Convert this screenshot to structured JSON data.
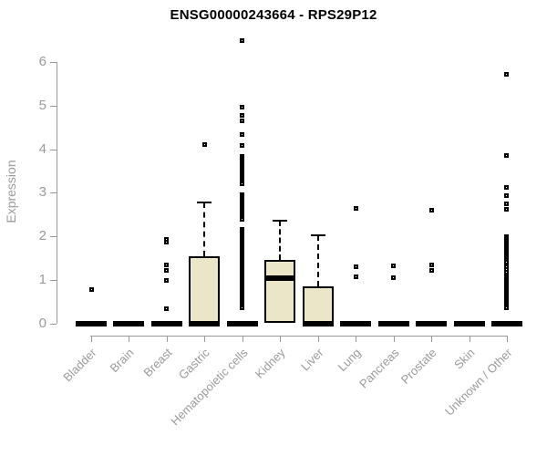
{
  "chart_data": {
    "type": "boxplot",
    "title": "ENSG00000243664 - RPS29P12",
    "xlabel": "",
    "ylabel": "Expression",
    "ylim": [
      0,
      6
    ],
    "yticks": [
      0,
      1,
      2,
      3,
      4,
      5,
      6
    ],
    "grid": false,
    "legend": "none",
    "categories": [
      "Bladder",
      "Brain",
      "Breast",
      "Gastric",
      "Hematopoietic cells",
      "Kidney",
      "Liver",
      "Lung",
      "Pancreas",
      "Prostate",
      "Skin",
      "Unknown / Other"
    ],
    "colors": {
      "box_fill": "#ebe6c8",
      "box_border": "#000000",
      "median": "#000000",
      "axis": "#999999",
      "tick_labels": "#9a9a9a",
      "title": "#000000",
      "background": "#ffffff"
    },
    "boxes": [
      {
        "category": "Bladder",
        "q1": 0,
        "median": 0,
        "q3": 0,
        "whisker_low": 0,
        "whisker_high": 0,
        "outliers": [
          0.78
        ]
      },
      {
        "category": "Brain",
        "q1": 0,
        "median": 0,
        "q3": 0,
        "whisker_low": 0,
        "whisker_high": 0,
        "outliers": []
      },
      {
        "category": "Breast",
        "q1": 0,
        "median": 0,
        "q3": 0,
        "whisker_low": 0,
        "whisker_high": 0,
        "outliers": [
          1.92,
          1.86,
          1.34,
          1.22,
          0.99,
          0.34
        ]
      },
      {
        "category": "Gastric",
        "q1": 0,
        "median": 0,
        "q3": 1.55,
        "whisker_low": 0,
        "whisker_high": 2.78,
        "outliers": [
          4.1
        ]
      },
      {
        "category": "Hematopoietic cells",
        "q1": 0,
        "median": 0,
        "q3": 0,
        "whisker_low": 0,
        "whisker_high": 0,
        "outliers": [
          6.5,
          4.97,
          4.77,
          4.65,
          4.33,
          4.08,
          3.84,
          3.8,
          3.76,
          3.72,
          3.68,
          3.64,
          3.6,
          3.56,
          3.52,
          3.48,
          3.44,
          3.4,
          3.36,
          3.32,
          3.28,
          3.24,
          3.2,
          2.96,
          2.92,
          2.88,
          2.84,
          2.8,
          2.76,
          2.72,
          2.68,
          2.64,
          2.6,
          2.56,
          2.52,
          2.48,
          2.44,
          2.4,
          2.16,
          2.12,
          2.08,
          2.04,
          2.0,
          1.96,
          1.92,
          1.88,
          1.84,
          1.8,
          1.76,
          1.72,
          1.68,
          1.64,
          1.6,
          1.56,
          1.52,
          1.48,
          1.44,
          1.4,
          1.36,
          1.32,
          1.28,
          1.24,
          1.2,
          1.16,
          1.12,
          1.08,
          1.04,
          1.0,
          0.96,
          0.92,
          0.88,
          0.84,
          0.8,
          0.76,
          0.72,
          0.68,
          0.64,
          0.6,
          0.56,
          0.52,
          0.48,
          0.44,
          0.4,
          0.36
        ]
      },
      {
        "category": "Kidney",
        "q1": 0,
        "median": 1.03,
        "q3": 1.45,
        "whisker_low": 0,
        "whisker_high": 2.35,
        "outliers": []
      },
      {
        "category": "Liver",
        "q1": 0,
        "median": 0,
        "q3": 0.85,
        "whisker_low": 0,
        "whisker_high": 2.03,
        "outliers": []
      },
      {
        "category": "Lung",
        "q1": 0,
        "median": 0,
        "q3": 0,
        "whisker_low": 0,
        "whisker_high": 0,
        "outliers": [
          2.64,
          1.3,
          1.07
        ]
      },
      {
        "category": "Pancreas",
        "q1": 0,
        "median": 0,
        "q3": 0,
        "whisker_low": 0,
        "whisker_high": 0,
        "outliers": [
          1.33,
          1.04
        ]
      },
      {
        "category": "Prostate",
        "q1": 0,
        "median": 0,
        "q3": 0,
        "whisker_low": 0,
        "whisker_high": 0,
        "outliers": [
          2.6,
          1.35,
          1.22
        ]
      },
      {
        "category": "Skin",
        "q1": 0,
        "median": 0,
        "q3": 0,
        "whisker_low": 0,
        "whisker_high": 0,
        "outliers": []
      },
      {
        "category": "Unknown / Other",
        "q1": 0,
        "median": 0,
        "q3": 0,
        "whisker_low": 0,
        "whisker_high": 0,
        "outliers": [
          5.72,
          3.85,
          3.12,
          2.93,
          2.75,
          2.62,
          2.0,
          1.96,
          1.92,
          1.88,
          1.84,
          1.8,
          1.76,
          1.72,
          1.68,
          1.64,
          1.6,
          1.56,
          1.52,
          1.48,
          1.44,
          1.4,
          1.31,
          1.24,
          1.17,
          1.1,
          1.04,
          1.0,
          0.96,
          0.92,
          0.88,
          0.84,
          0.8,
          0.76,
          0.72,
          0.68,
          0.64,
          0.6,
          0.56,
          0.52,
          0.48,
          0.44,
          0.4,
          0.36
        ]
      }
    ]
  }
}
